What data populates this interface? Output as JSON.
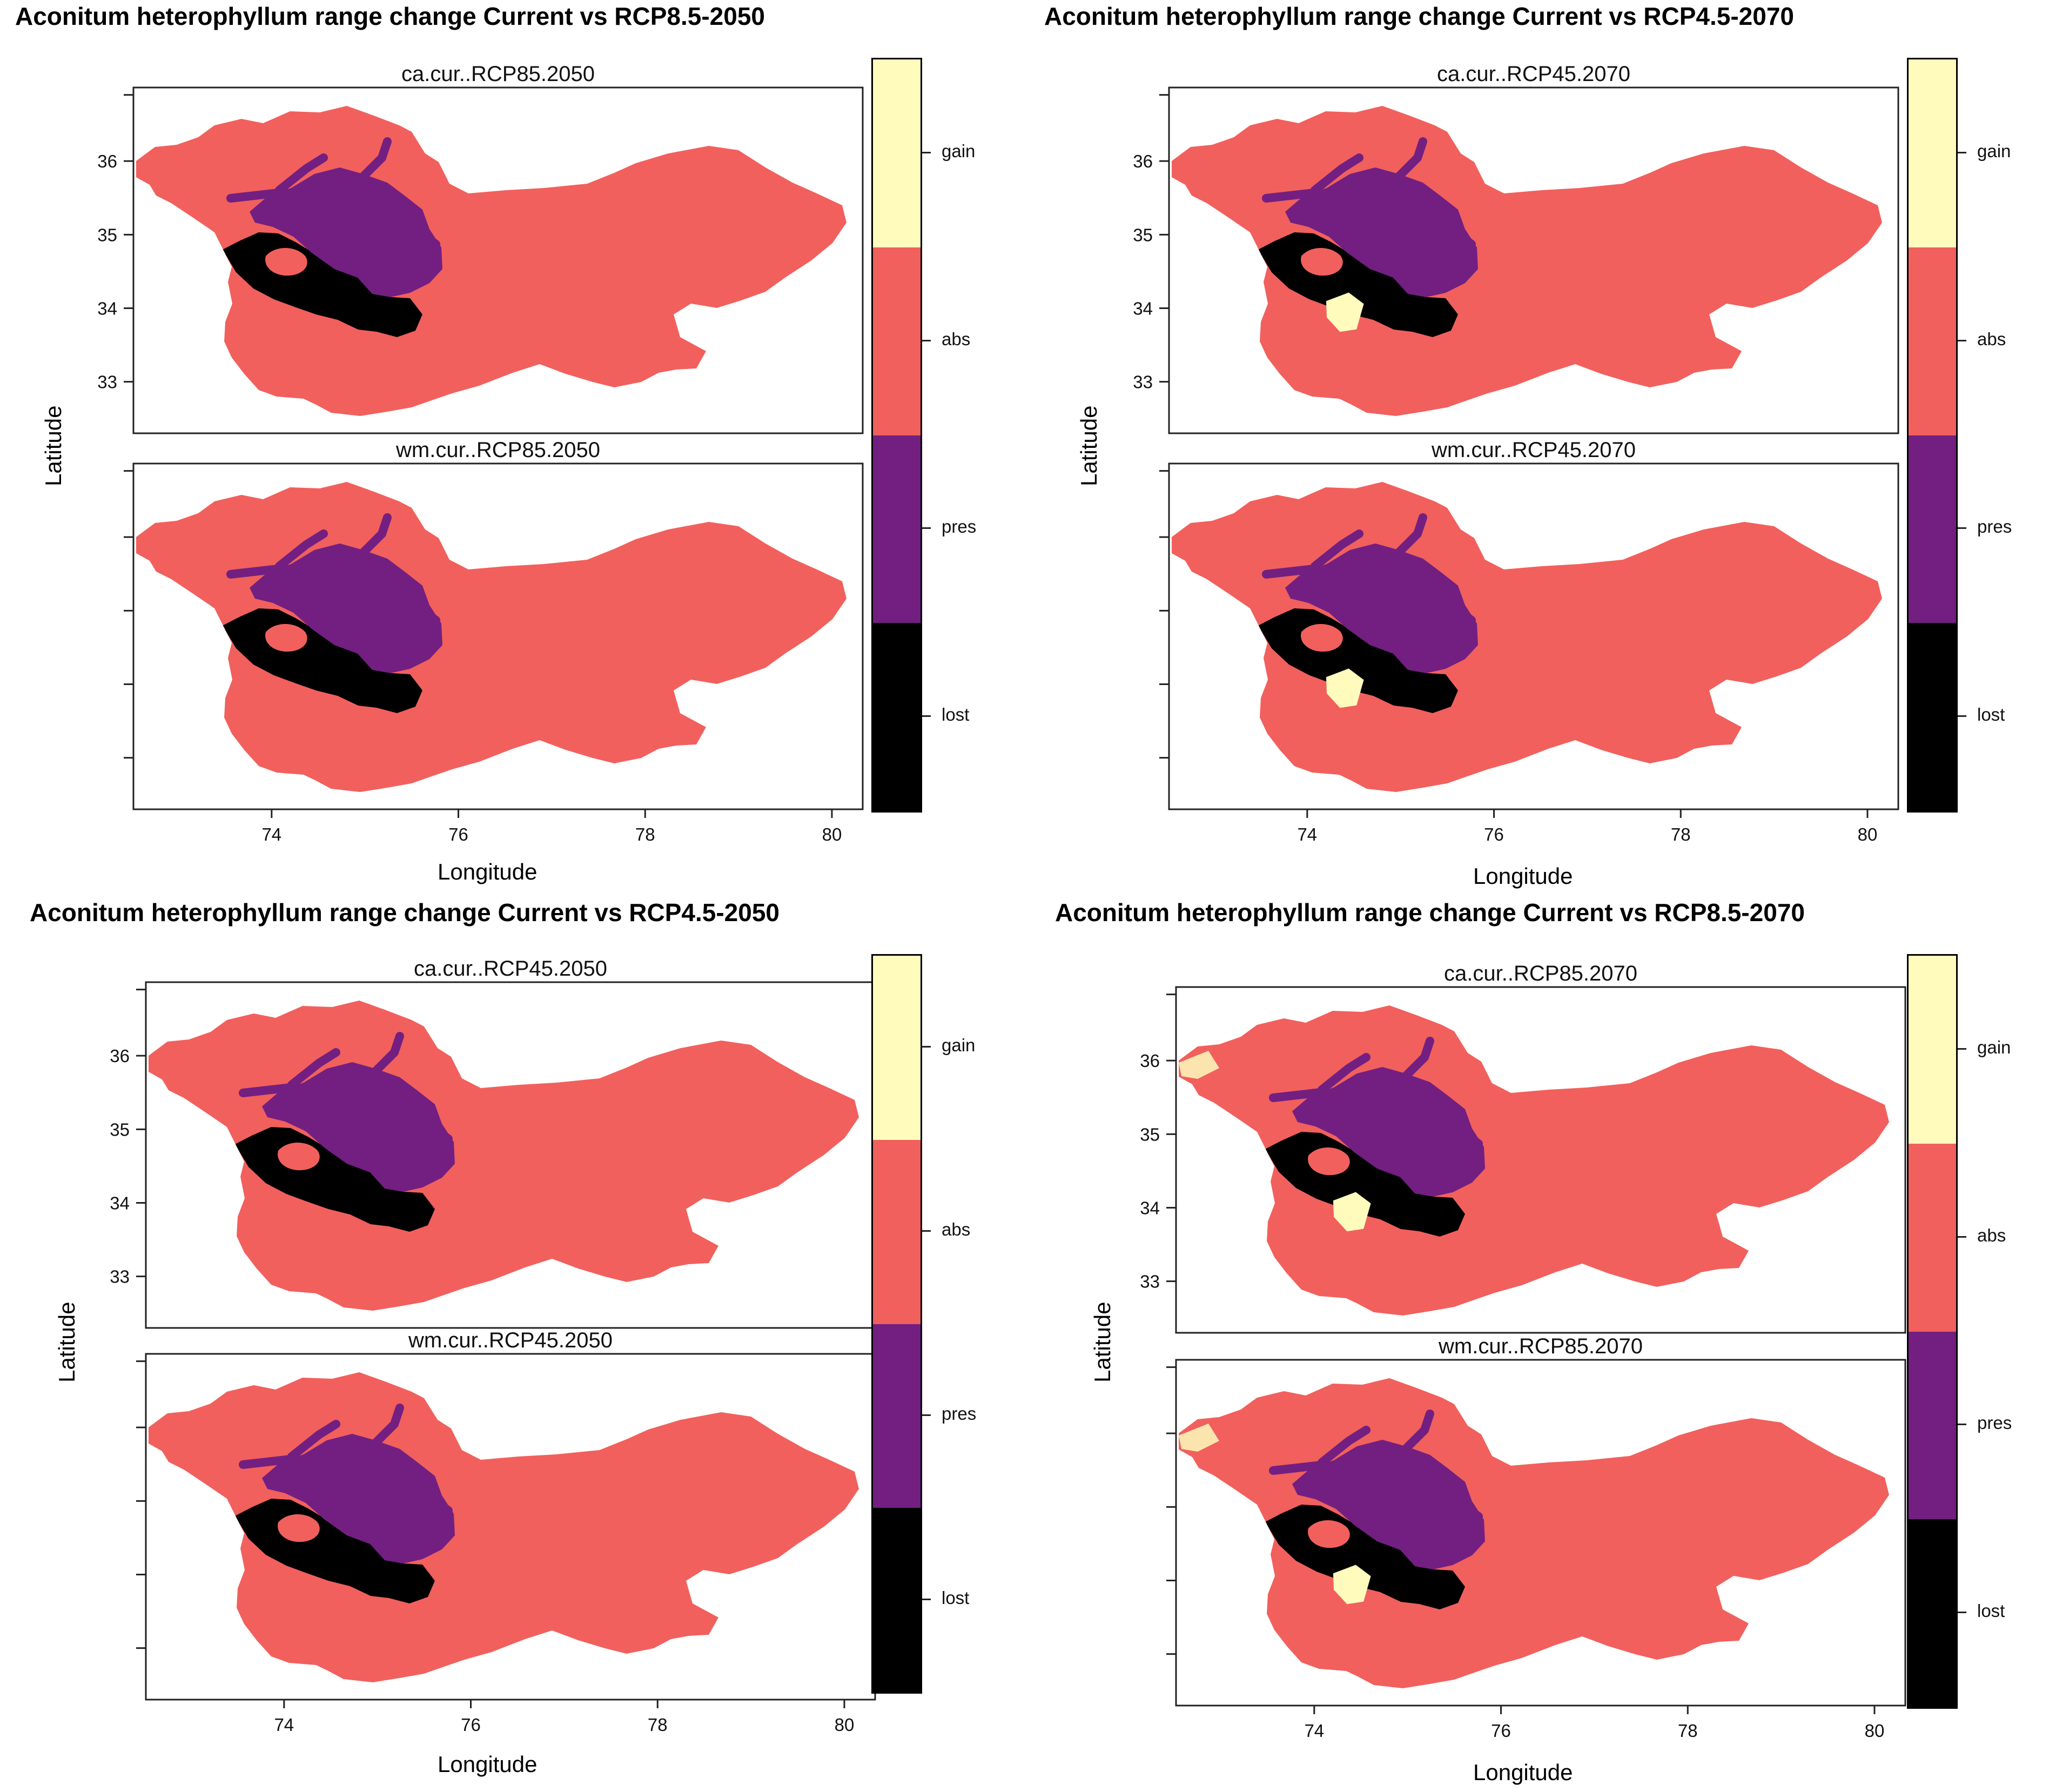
{
  "map_common": {
    "xlabel": "Longitude",
    "ylabel": "Latitude",
    "x_ticks": [
      "74",
      "76",
      "78",
      "80"
    ],
    "y_ticks": [
      "33",
      "34",
      "35",
      "36"
    ],
    "legend": [
      {
        "label": "gain",
        "color": "#FEFBBD"
      },
      {
        "label": "abs",
        "color": "#F1605D"
      },
      {
        "label": "pres",
        "color": "#721F81"
      },
      {
        "label": "lost",
        "color": "#000000"
      }
    ]
  },
  "figures": [
    {
      "title": "Aconitum heterophyllum range change Current vs RCP8.5-2050",
      "panels": [
        {
          "title": "ca.cur..RCP85.2050"
        },
        {
          "title": "wm.cur..RCP85.2050"
        }
      ]
    },
    {
      "title": "Aconitum heterophyllum range change Current vs RCP4.5-2070",
      "panels": [
        {
          "title": "ca.cur..RCP45.2070"
        },
        {
          "title": "wm.cur..RCP45.2070"
        }
      ]
    },
    {
      "title": "Aconitum heterophyllum range change Current vs RCP4.5-2050",
      "panels": [
        {
          "title": "ca.cur..RCP45.2050"
        },
        {
          "title": "wm.cur..RCP45.2050"
        }
      ]
    },
    {
      "title": "Aconitum heterophyllum range change Current vs RCP8.5-2070",
      "panels": [
        {
          "title": "ca.cur..RCP85.2070"
        },
        {
          "title": "wm.cur..RCP85.2070"
        }
      ]
    }
  ]
}
